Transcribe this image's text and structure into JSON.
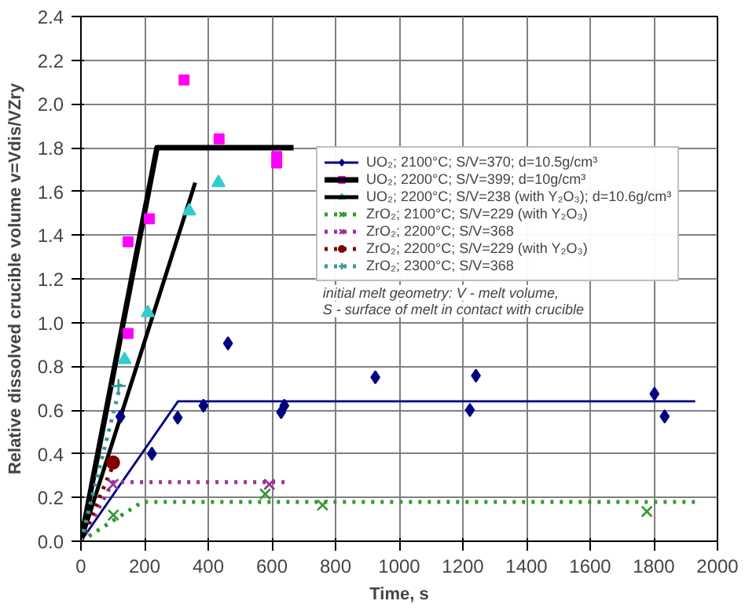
{
  "chart_data": {
    "type": "scatter",
    "xlabel": "Time, s",
    "ylabel": "Relative dissolved crucible volume v=Vdis/VZry",
    "xlim": [
      0,
      2000
    ],
    "ylim": [
      0,
      2.4
    ],
    "xticks": [
      0,
      200,
      400,
      600,
      800,
      1000,
      1200,
      1400,
      1600,
      1800,
      2000
    ],
    "yticks": [
      {
        "value": 0,
        "label": "0.0"
      },
      0.2,
      0.4,
      0.6,
      0.8,
      {
        "value": 1,
        "label": "1.0"
      },
      1.2,
      1.4,
      1.6,
      1.8,
      {
        "value": 2,
        "label": "2.0"
      },
      2.2,
      2.4
    ],
    "grid": true,
    "legend": "top right",
    "series": [
      {
        "name": "UO₂; 2100°C; S/V=370; d=10.5g/cm³",
        "color": "#000080",
        "marker": "diamond",
        "x": [
          124,
          223,
          304,
          385,
          462,
          629,
          639,
          925,
          1222,
          1241,
          1802,
          1834
        ],
        "values": [
          0.57,
          0.4,
          0.565,
          0.62,
          0.905,
          0.59,
          0.62,
          0.75,
          0.6,
          0.757,
          0.674,
          0.571
        ]
      },
      {
        "type": "line",
        "color": "#000080",
        "line_style": "solid",
        "x": [
          0,
          305,
          1930
        ],
        "values": [
          0,
          0.64,
          0.64
        ]
      },
      {
        "name": "UO₂; 2200°C; S/V=399; d=10g/cm³",
        "color": "#ff00ff",
        "marker": "square",
        "x": [
          148,
          148,
          215,
          324,
          434,
          615,
          615
        ],
        "values": [
          0.95,
          1.37,
          1.475,
          2.11,
          1.84,
          1.76,
          1.73
        ]
      },
      {
        "type": "line",
        "color": "#000000",
        "line_style": "solid",
        "x": [
          0,
          239,
          668
        ],
        "values": [
          0,
          1.8,
          1.8
        ]
      },
      {
        "name": "UO₂; 2200°C; S/V=238 (with Y₂O₃); d=10.6g/cm³",
        "color": "#33cccc",
        "marker": "triangle",
        "x": [
          137,
          210,
          340,
          432
        ],
        "values": [
          0.83,
          1.045,
          1.51,
          1.64
        ]
      },
      {
        "type": "line",
        "color": "#000000",
        "line_style": "solid",
        "x": [
          0,
          359
        ],
        "values": [
          0,
          1.64
        ]
      },
      {
        "name": "ZrO₂; 2100°C; S/V=229 (with Y₂O₃)",
        "color": "#339933",
        "marker": "x",
        "x": [
          102,
          579,
          759,
          1778
        ],
        "values": [
          0.12,
          0.216,
          0.165,
          0.136
        ]
      },
      {
        "type": "line",
        "color": "#339933",
        "line_style": "dotted",
        "x": [
          0,
          193,
          1930
        ],
        "values": [
          0,
          0.18,
          0.18
        ]
      },
      {
        "name": "ZrO₂; 2200°C; S/V=368",
        "color": "#993399",
        "marker": "x",
        "x": [
          101,
          592
        ],
        "values": [
          0.26,
          0.26
        ]
      },
      {
        "type": "line",
        "color": "#993399",
        "line_style": "dotted",
        "x": [
          0,
          100,
          649
        ],
        "values": [
          0,
          0.27,
          0.27
        ]
      },
      {
        "name": "ZrO₂; 2200°C; S/V=229 (with Y₂O₃)",
        "color": "#800000",
        "marker": "circle",
        "x": [
          101
        ],
        "values": [
          0.36
        ]
      },
      {
        "type": "line",
        "color": "#800000",
        "line_style": "dotted",
        "x": [
          0,
          105
        ],
        "values": [
          0,
          0.36
        ]
      },
      {
        "name": "ZrO₂; 2300°C; S/V=368",
        "color": "#339999",
        "marker": "cross",
        "x": [
          118
        ],
        "values": [
          0.71
        ]
      },
      {
        "type": "line",
        "color": "#339999",
        "line_style": "dotted",
        "x": [
          0,
          125
        ],
        "values": [
          0,
          0.72
        ]
      }
    ],
    "annotations": [
      "initial melt geometry: V - melt volume,",
      "S - surface of melt in contact with crucible"
    ]
  }
}
